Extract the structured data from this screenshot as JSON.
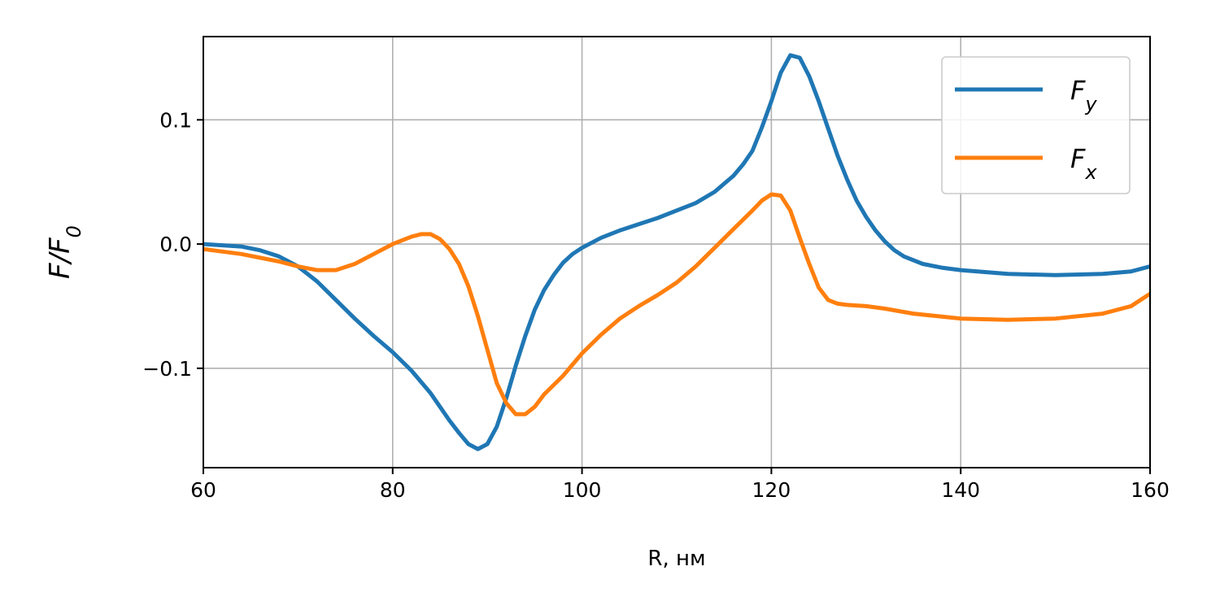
{
  "chart_data": {
    "type": "line",
    "xlabel": "R, нм",
    "ylabel": "F/F0",
    "ylabel_base": "F/F",
    "ylabel_sub": "0",
    "xlim": [
      60,
      160
    ],
    "ylim": [
      -0.18,
      0.167
    ],
    "xticks": [
      60,
      80,
      100,
      120,
      140,
      160
    ],
    "xtick_labels": [
      "60",
      "80",
      "100",
      "120",
      "140",
      "160"
    ],
    "yticks": [
      -0.1,
      0.0,
      0.1
    ],
    "ytick_labels": [
      "−0.1",
      "0.0",
      "0.1"
    ],
    "grid": true,
    "legend_position": "top-right",
    "series": [
      {
        "name": "Fy",
        "legend_base": "F",
        "legend_sub": "y",
        "color": "#1f77b4",
        "x": [
          60,
          62,
          64,
          66,
          68,
          70,
          72,
          74,
          76,
          78,
          80,
          82,
          84,
          86,
          87,
          88,
          89,
          90,
          91,
          92,
          93,
          94,
          95,
          96,
          97,
          98,
          99,
          100,
          102,
          104,
          106,
          108,
          110,
          112,
          114,
          116,
          117,
          118,
          119,
          120,
          121,
          122,
          123,
          124,
          125,
          126,
          127,
          128,
          129,
          130,
          131,
          132,
          133,
          134,
          136,
          138,
          140,
          145,
          150,
          155,
          158,
          160
        ],
        "y": [
          0.0,
          -0.001,
          -0.002,
          -0.005,
          -0.01,
          -0.018,
          -0.03,
          -0.045,
          -0.06,
          -0.074,
          -0.087,
          -0.102,
          -0.12,
          -0.142,
          -0.152,
          -0.161,
          -0.165,
          -0.161,
          -0.147,
          -0.124,
          -0.098,
          -0.074,
          -0.053,
          -0.037,
          -0.025,
          -0.015,
          -0.008,
          -0.003,
          0.005,
          0.011,
          0.016,
          0.021,
          0.027,
          0.033,
          0.042,
          0.055,
          0.064,
          0.075,
          0.094,
          0.115,
          0.138,
          0.152,
          0.15,
          0.135,
          0.115,
          0.093,
          0.071,
          0.052,
          0.035,
          0.022,
          0.011,
          0.002,
          -0.005,
          -0.01,
          -0.016,
          -0.019,
          -0.021,
          -0.024,
          -0.025,
          -0.024,
          -0.022,
          -0.018
        ]
      },
      {
        "name": "Fx",
        "legend_base": "F",
        "legend_sub": "x",
        "color": "#ff7f0e",
        "x": [
          60,
          64,
          68,
          70,
          72,
          74,
          76,
          78,
          80,
          82,
          83,
          84,
          85,
          86,
          87,
          88,
          89,
          90,
          91,
          92,
          93,
          94,
          95,
          96,
          98,
          100,
          102,
          104,
          106,
          108,
          110,
          112,
          114,
          116,
          118,
          119,
          120,
          121,
          122,
          123,
          124,
          125,
          126,
          127,
          128,
          130,
          132,
          135,
          140,
          145,
          150,
          155,
          158,
          160
        ],
        "y": [
          -0.004,
          -0.008,
          -0.014,
          -0.018,
          -0.021,
          -0.021,
          -0.016,
          -0.008,
          0.0,
          0.006,
          0.008,
          0.008,
          0.004,
          -0.004,
          -0.016,
          -0.034,
          -0.058,
          -0.085,
          -0.112,
          -0.128,
          -0.137,
          -0.137,
          -0.131,
          -0.121,
          -0.106,
          -0.088,
          -0.073,
          -0.06,
          -0.05,
          -0.041,
          -0.031,
          -0.018,
          -0.003,
          0.012,
          0.027,
          0.035,
          0.04,
          0.039,
          0.027,
          0.005,
          -0.016,
          -0.035,
          -0.045,
          -0.048,
          -0.049,
          -0.05,
          -0.052,
          -0.056,
          -0.06,
          -0.061,
          -0.06,
          -0.056,
          -0.05,
          -0.04
        ]
      }
    ]
  }
}
